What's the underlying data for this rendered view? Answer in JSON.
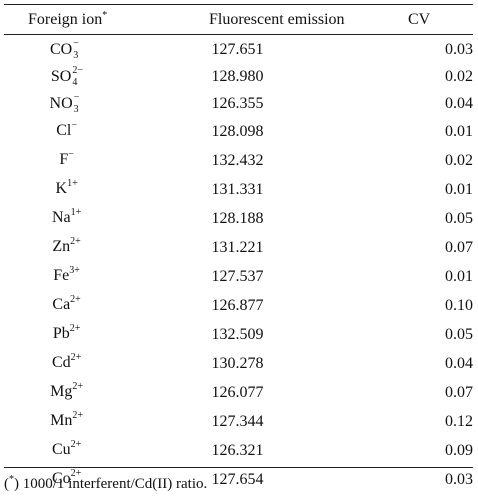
{
  "table": {
    "headers": {
      "foreign_ion": "Foreign ion",
      "foreign_ion_mark": "*",
      "emission": "Fluorescent emission",
      "cv": "CV"
    },
    "rows": [
      {
        "ion": "CO",
        "sub": "3",
        "charge": "−",
        "emission": "127.651",
        "cv": "0.03"
      },
      {
        "ion": "SO",
        "sub": "4",
        "charge": "2−",
        "emission": "128.980",
        "cv": "0.02"
      },
      {
        "ion": "NO",
        "sub": "3",
        "charge": "−",
        "emission": "126.355",
        "cv": "0.04"
      },
      {
        "ion": "Cl",
        "sub": "",
        "charge": "−",
        "emission": "128.098",
        "cv": "0.01"
      },
      {
        "ion": "F",
        "sub": "",
        "charge": "−",
        "emission": "132.432",
        "cv": "0.02"
      },
      {
        "ion": "K",
        "sub": "",
        "charge": "1+",
        "emission": "131.331",
        "cv": "0.01"
      },
      {
        "ion": "Na",
        "sub": "",
        "charge": "1+",
        "emission": "128.188",
        "cv": "0.05"
      },
      {
        "ion": "Zn",
        "sub": "",
        "charge": "2+",
        "emission": "131.221",
        "cv": "0.07"
      },
      {
        "ion": "Fe",
        "sub": "",
        "charge": "3+",
        "emission": "127.537",
        "cv": "0.01"
      },
      {
        "ion": "Ca",
        "sub": "",
        "charge": "2+",
        "emission": "126.877",
        "cv": "0.10"
      },
      {
        "ion": "Pb",
        "sub": "",
        "charge": "2+",
        "emission": "132.509",
        "cv": "0.05"
      },
      {
        "ion": "Cd",
        "sub": "",
        "charge": "2+",
        "emission": "130.278",
        "cv": "0.04"
      },
      {
        "ion": "Mg",
        "sub": "",
        "charge": "2+",
        "emission": "126.077",
        "cv": "0.07"
      },
      {
        "ion": "Mn",
        "sub": "",
        "charge": "2+",
        "emission": "127.344",
        "cv": "0.12"
      },
      {
        "ion": "Cu",
        "sub": "",
        "charge": "2+",
        "emission": "126.321",
        "cv": "0.09"
      },
      {
        "ion": "Co",
        "sub": "",
        "charge": "2+",
        "emission": "127.654",
        "cv": "0.03"
      }
    ]
  },
  "footnote": {
    "mark": "*",
    "text": ") 1000/1 interferent/Cd(II) ratio.",
    "open_paren": "("
  }
}
